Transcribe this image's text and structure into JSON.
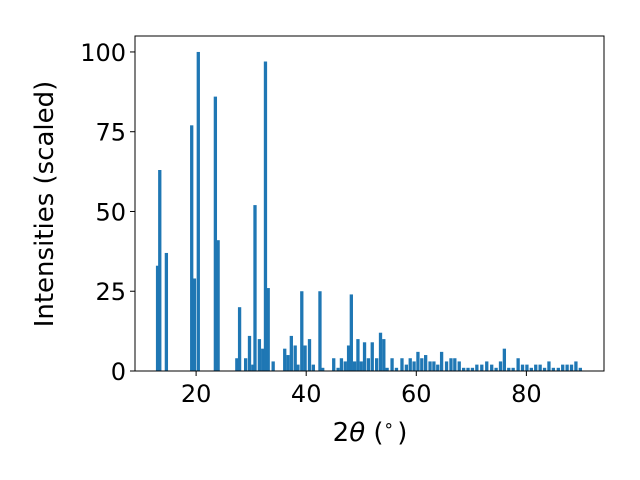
{
  "chart_data": {
    "type": "bar",
    "title": "",
    "xlabel_prefix": "2",
    "xlabel_theta": "θ",
    "xlabel_paren_open": " (",
    "xlabel_degree": "∘",
    "xlabel_paren_close": ")",
    "ylabel": "Intensities (scaled)",
    "xlim": [
      8.9,
      94.1
    ],
    "ylim": [
      0,
      105
    ],
    "xticks": [
      20,
      40,
      60,
      80
    ],
    "yticks": [
      0,
      25,
      50,
      75,
      100
    ],
    "bar_width": 0.6,
    "color": "#1f77b4",
    "x": [
      13.0,
      13.4,
      14.6,
      19.2,
      19.7,
      20.4,
      23.5,
      24.0,
      27.4,
      27.9,
      29.0,
      29.7,
      30.3,
      30.7,
      31.5,
      32.1,
      32.6,
      33.1,
      34.0,
      36.1,
      36.7,
      37.3,
      38.0,
      38.5,
      39.2,
      39.8,
      40.6,
      41.3,
      42.5,
      43.0,
      45.0,
      45.8,
      46.4,
      47.1,
      47.7,
      48.2,
      48.8,
      49.4,
      50.0,
      50.6,
      51.3,
      52.0,
      52.8,
      53.5,
      54.1,
      54.7,
      55.6,
      56.4,
      57.4,
      58.2,
      58.9,
      59.6,
      60.3,
      61.0,
      61.7,
      62.5,
      63.2,
      63.9,
      64.6,
      65.5,
      66.3,
      67.0,
      67.8,
      68.6,
      69.4,
      70.2,
      71.0,
      71.9,
      72.8,
      73.7,
      74.5,
      75.3,
      76.0,
      76.8,
      77.6,
      78.5,
      79.3,
      80.1,
      80.9,
      81.7,
      82.5,
      83.3,
      84.1,
      84.9,
      85.8,
      86.6,
      87.4,
      88.2,
      89.0,
      89.8
    ],
    "values": [
      33,
      63,
      37,
      77,
      29,
      100,
      86,
      41,
      4,
      20,
      4,
      11,
      2,
      52,
      10,
      7,
      97,
      26,
      3,
      7,
      5,
      11,
      8,
      2,
      25,
      8,
      10,
      2,
      25,
      1,
      4,
      1,
      4,
      3,
      8,
      24,
      3,
      10,
      3,
      9,
      4,
      9,
      4,
      12,
      10,
      1,
      4,
      1,
      4,
      2,
      4,
      3,
      6,
      4,
      5,
      3,
      3,
      2,
      6,
      3,
      4,
      4,
      3,
      1,
      1,
      1,
      2,
      2,
      3,
      2,
      1,
      3,
      7,
      1,
      1,
      4,
      2,
      2,
      1,
      2,
      2,
      1,
      3,
      1,
      1,
      2,
      2,
      2,
      3,
      1
    ]
  }
}
